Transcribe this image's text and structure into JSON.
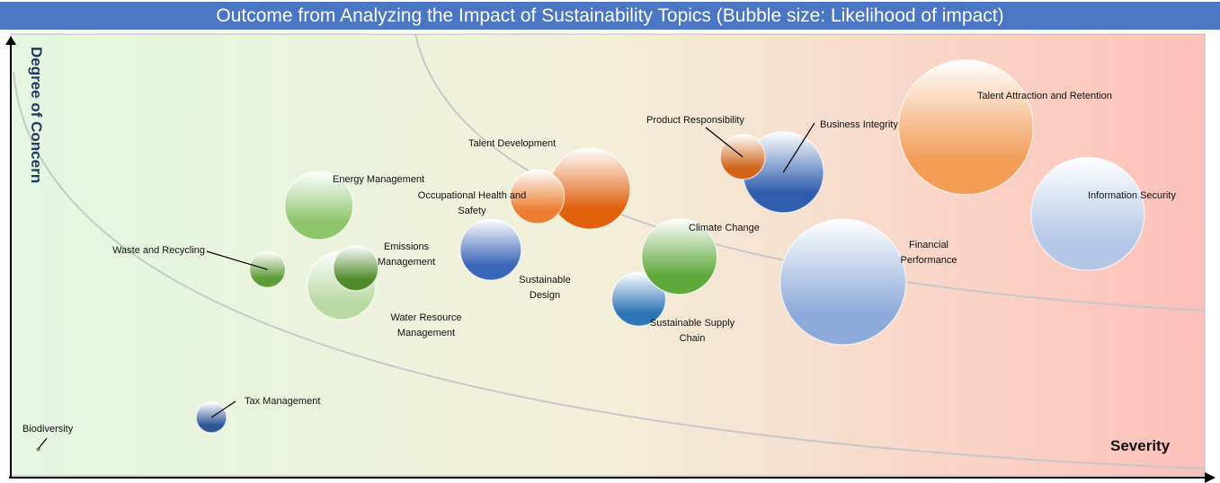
{
  "chart_data": {
    "type": "bubble",
    "title": "Outcome from Analyzing the Impact of Sustainability Topics (Bubble size: Likelihood of impact)",
    "x_label": "Severity",
    "y_label": "Degree of Concern",
    "xlim": [
      0,
      100
    ],
    "ylim": [
      0,
      100
    ],
    "points": [
      {
        "name": "Biodiversity",
        "x": 2.3,
        "y": 6.1,
        "size": 3,
        "color": "#6b8e23"
      },
      {
        "name": "Tax Management",
        "x": 16.8,
        "y": 13.2,
        "size": 17,
        "color": "#2f5597"
      },
      {
        "name": "Waste and Recycling",
        "x": 21.5,
        "y": 46.7,
        "size": 20,
        "color": "#5e9c35"
      },
      {
        "name": "Energy Management",
        "x": 25.8,
        "y": 61.2,
        "size": 38,
        "color": "#8cc56a"
      },
      {
        "name": "Water Resource Management",
        "x": 27.7,
        "y": 43.1,
        "size": 38,
        "color": "#b9d9a3"
      },
      {
        "name": "Emissions Management",
        "x": 28.9,
        "y": 47.0,
        "size": 25,
        "color": "#4f8a2a"
      },
      {
        "name": "Sustainable Design",
        "x": 40.2,
        "y": 51.2,
        "size": 34,
        "color": "#3a66b8"
      },
      {
        "name": "Talent Development",
        "x": 48.5,
        "y": 65.0,
        "size": 45,
        "color": "#e0600c"
      },
      {
        "name": "Occupational Health and Safety",
        "x": 44.1,
        "y": 63.2,
        "size": 30,
        "color": "#ed7d31"
      },
      {
        "name": "Sustainable Supply Chain",
        "x": 52.6,
        "y": 40.0,
        "size": 30,
        "color": "#2e75b6"
      },
      {
        "name": "Climate Change",
        "x": 56.0,
        "y": 49.6,
        "size": 42,
        "color": "#5fa83a"
      },
      {
        "name": "Business Integrity",
        "x": 64.7,
        "y": 68.7,
        "size": 45,
        "color": "#2f5eae"
      },
      {
        "name": "Product Responsibility",
        "x": 61.3,
        "y": 72.2,
        "size": 25,
        "color": "#d0651a"
      },
      {
        "name": "Financial Performance",
        "x": 69.7,
        "y": 43.9,
        "size": 70,
        "color": "#8eaadb"
      },
      {
        "name": "Talent Attraction and Retention",
        "x": 80.0,
        "y": 78.9,
        "size": 75,
        "color": "#f39c56"
      },
      {
        "name": "Information Security",
        "x": 90.2,
        "y": 59.3,
        "size": 63,
        "color": "#b4c7e7"
      }
    ]
  }
}
